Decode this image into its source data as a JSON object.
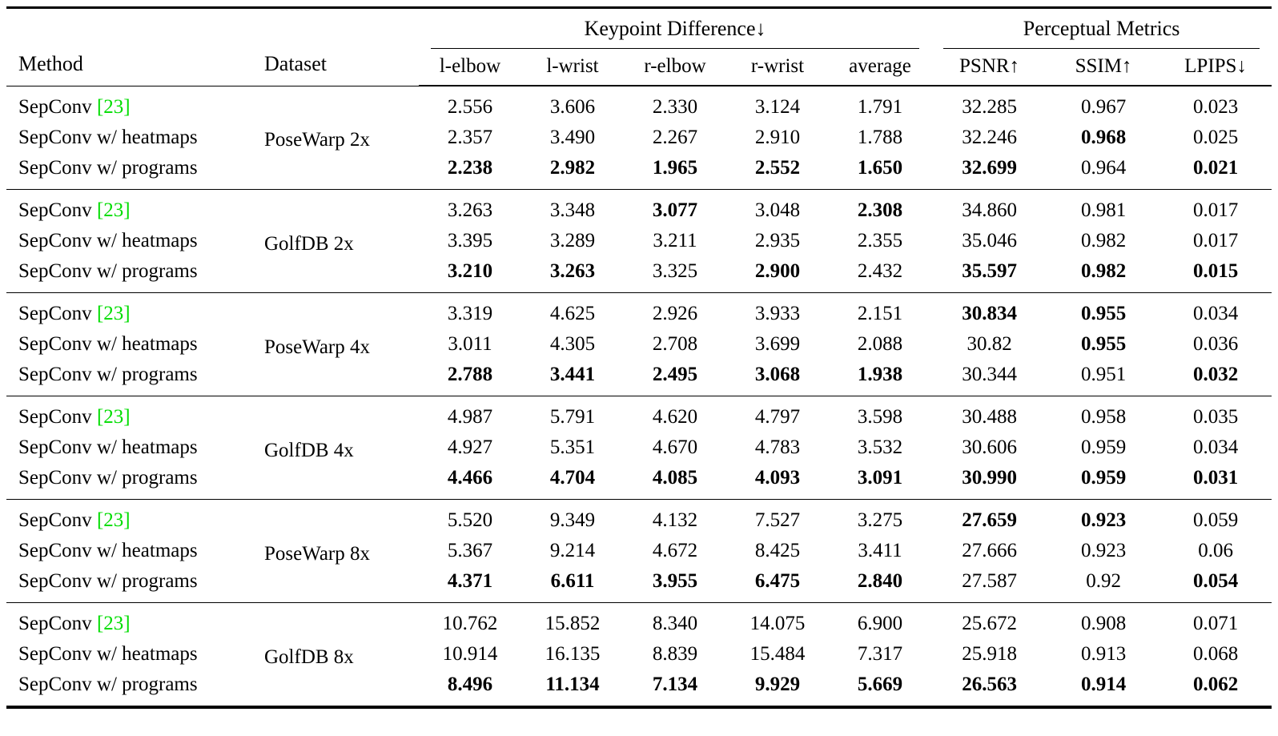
{
  "colors": {
    "citation": "#00dd00",
    "rule": "#000000",
    "background": "#ffffff"
  },
  "table": {
    "header": {
      "method": "Method",
      "dataset": "Dataset",
      "keypoint_group": "Keypoint Difference↓",
      "perceptual_group": "Perceptual Metrics",
      "keypoint_cols": [
        "l-elbow",
        "l-wrist",
        "r-elbow",
        "r-wrist",
        "average"
      ],
      "perceptual_cols": [
        "PSNR↑",
        "SSIM↑",
        "LPIPS↓"
      ]
    },
    "groups": [
      {
        "dataset": "PoseWarp 2x",
        "rows": [
          {
            "method": "SepConv",
            "cite": "[23]",
            "values": [
              "2.556",
              "3.606",
              "2.330",
              "3.124",
              "1.791",
              "32.285",
              "0.967",
              "0.023"
            ],
            "bold": []
          },
          {
            "method": "SepConv w/ heatmaps",
            "cite": null,
            "values": [
              "2.357",
              "3.490",
              "2.267",
              "2.910",
              "1.788",
              "32.246",
              "0.968",
              "0.025"
            ],
            "bold": [
              6
            ]
          },
          {
            "method": "SepConv w/ programs",
            "cite": null,
            "values": [
              "2.238",
              "2.982",
              "1.965",
              "2.552",
              "1.650",
              "32.699",
              "0.964",
              "0.021"
            ],
            "bold": [
              0,
              1,
              2,
              3,
              4,
              5,
              7
            ]
          }
        ]
      },
      {
        "dataset": "GolfDB 2x",
        "rows": [
          {
            "method": "SepConv",
            "cite": "[23]",
            "values": [
              "3.263",
              "3.348",
              "3.077",
              "3.048",
              "2.308",
              "34.860",
              "0.981",
              "0.017"
            ],
            "bold": [
              2,
              4
            ]
          },
          {
            "method": "SepConv w/ heatmaps",
            "cite": null,
            "values": [
              "3.395",
              "3.289",
              "3.211",
              "2.935",
              "2.355",
              "35.046",
              "0.982",
              "0.017"
            ],
            "bold": []
          },
          {
            "method": "SepConv w/ programs",
            "cite": null,
            "values": [
              "3.210",
              "3.263",
              "3.325",
              "2.900",
              "2.432",
              "35.597",
              "0.982",
              "0.015"
            ],
            "bold": [
              0,
              1,
              3,
              5,
              6,
              7
            ]
          }
        ]
      },
      {
        "dataset": "PoseWarp 4x",
        "rows": [
          {
            "method": "SepConv",
            "cite": "[23]",
            "values": [
              "3.319",
              "4.625",
              "2.926",
              "3.933",
              "2.151",
              "30.834",
              "0.955",
              "0.034"
            ],
            "bold": [
              5,
              6
            ]
          },
          {
            "method": "SepConv w/ heatmaps",
            "cite": null,
            "values": [
              "3.011",
              "4.305",
              "2.708",
              "3.699",
              "2.088",
              "30.82",
              "0.955",
              "0.036"
            ],
            "bold": [
              6
            ]
          },
          {
            "method": "SepConv w/ programs",
            "cite": null,
            "values": [
              "2.788",
              "3.441",
              "2.495",
              "3.068",
              "1.938",
              "30.344",
              "0.951",
              "0.032"
            ],
            "bold": [
              0,
              1,
              2,
              3,
              4,
              7
            ]
          }
        ]
      },
      {
        "dataset": "GolfDB 4x",
        "rows": [
          {
            "method": "SepConv",
            "cite": "[23]",
            "values": [
              "4.987",
              "5.791",
              "4.620",
              "4.797",
              "3.598",
              "30.488",
              "0.958",
              "0.035"
            ],
            "bold": []
          },
          {
            "method": "SepConv w/ heatmaps",
            "cite": null,
            "values": [
              "4.927",
              "5.351",
              "4.670",
              "4.783",
              "3.532",
              "30.606",
              "0.959",
              "0.034"
            ],
            "bold": []
          },
          {
            "method": "SepConv w/ programs",
            "cite": null,
            "values": [
              "4.466",
              "4.704",
              "4.085",
              "4.093",
              "3.091",
              "30.990",
              "0.959",
              "0.031"
            ],
            "bold": [
              0,
              1,
              2,
              3,
              4,
              5,
              6,
              7
            ]
          }
        ]
      },
      {
        "dataset": "PoseWarp 8x",
        "rows": [
          {
            "method": "SepConv",
            "cite": "[23]",
            "values": [
              "5.520",
              "9.349",
              "4.132",
              "7.527",
              "3.275",
              "27.659",
              "0.923",
              "0.059"
            ],
            "bold": [
              5,
              6
            ]
          },
          {
            "method": "SepConv w/ heatmaps",
            "cite": null,
            "values": [
              "5.367",
              "9.214",
              "4.672",
              "8.425",
              "3.411",
              "27.666",
              "0.923",
              "0.06"
            ],
            "bold": []
          },
          {
            "method": "SepConv w/ programs",
            "cite": null,
            "values": [
              "4.371",
              "6.611",
              "3.955",
              "6.475",
              "2.840",
              "27.587",
              "0.92",
              "0.054"
            ],
            "bold": [
              0,
              1,
              2,
              3,
              4,
              7
            ]
          }
        ]
      },
      {
        "dataset": "GolfDB 8x",
        "rows": [
          {
            "method": "SepConv",
            "cite": "[23]",
            "values": [
              "10.762",
              "15.852",
              "8.340",
              "14.075",
              "6.900",
              "25.672",
              "0.908",
              "0.071"
            ],
            "bold": []
          },
          {
            "method": "SepConv w/ heatmaps",
            "cite": null,
            "values": [
              "10.914",
              "16.135",
              "8.839",
              "15.484",
              "7.317",
              "25.918",
              "0.913",
              "0.068"
            ],
            "bold": []
          },
          {
            "method": "SepConv w/ programs",
            "cite": null,
            "values": [
              "8.496",
              "11.134",
              "7.134",
              "9.929",
              "5.669",
              "26.563",
              "0.914",
              "0.062"
            ],
            "bold": [
              0,
              1,
              2,
              3,
              4,
              5,
              6,
              7
            ]
          }
        ]
      }
    ]
  }
}
